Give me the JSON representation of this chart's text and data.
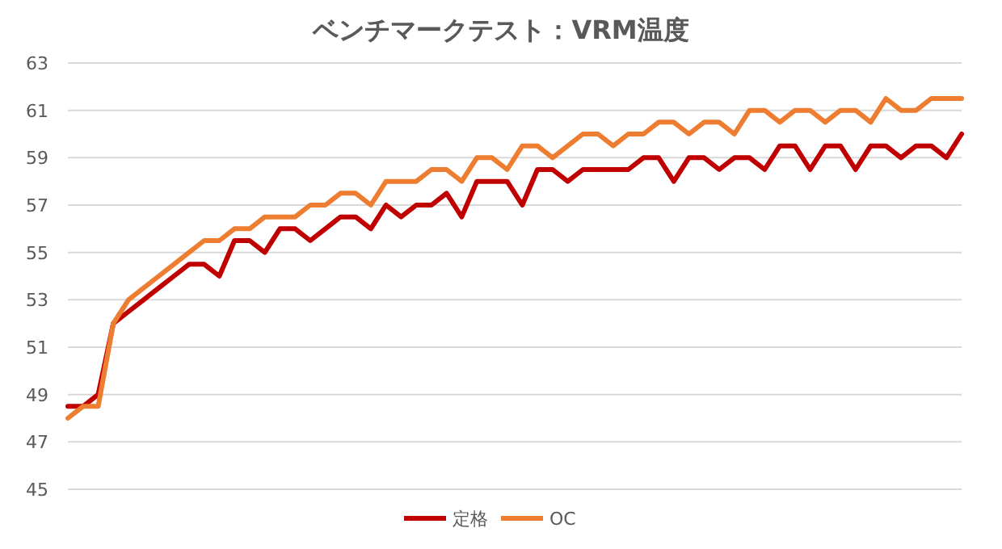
{
  "chart_data": {
    "type": "line",
    "title": "ベンチマークテスト：VRM温度",
    "categories": [
      null,
      null,
      null,
      null,
      null,
      null,
      null,
      null,
      null,
      null,
      null,
      null,
      null,
      null,
      null,
      null,
      null,
      null,
      null,
      null,
      null,
      null,
      null,
      null,
      null,
      null,
      null,
      null,
      null,
      null,
      null,
      null,
      null,
      null,
      null,
      null,
      null,
      null,
      null,
      null,
      null,
      null,
      null,
      null,
      null,
      null,
      null,
      null,
      null,
      null,
      null,
      null,
      null,
      null,
      null,
      null,
      null,
      null,
      null,
      null
    ],
    "series": [
      {
        "name": "定格",
        "color": "#c00000",
        "values": [
          48.5,
          48.5,
          49,
          52,
          52.5,
          53,
          53.5,
          54,
          54.5,
          54.5,
          54,
          55.5,
          55.5,
          55,
          56,
          56,
          55.5,
          56,
          56.5,
          56.5,
          56,
          57,
          56.5,
          57,
          57,
          57.5,
          56.5,
          58,
          58,
          58,
          57,
          58.5,
          58.5,
          58,
          58.5,
          58.5,
          58.5,
          58.5,
          59,
          59,
          58,
          59,
          59,
          58.5,
          59,
          59,
          58.5,
          59.5,
          59.5,
          58.5,
          59.5,
          59.5,
          58.5,
          59.5,
          59.5,
          59,
          59.5,
          59.5,
          59,
          60
        ]
      },
      {
        "name": "OC",
        "color": "#ed7d31",
        "values": [
          48,
          48.5,
          48.5,
          52,
          53,
          53.5,
          54,
          54.5,
          55,
          55.5,
          55.5,
          56,
          56,
          56.5,
          56.5,
          56.5,
          57,
          57,
          57.5,
          57.5,
          57,
          58,
          58,
          58,
          58.5,
          58.5,
          58,
          59,
          59,
          58.5,
          59.5,
          59.5,
          59,
          59.5,
          60,
          60,
          59.5,
          60,
          60,
          60.5,
          60.5,
          60,
          60.5,
          60.5,
          60,
          61,
          61,
          60.5,
          61,
          61,
          60.5,
          61,
          61,
          60.5,
          61.5,
          61,
          61,
          61.5,
          61.5,
          61.5
        ]
      }
    ],
    "ylim": [
      45,
      63
    ],
    "yticks": [
      45,
      47,
      49,
      51,
      53,
      55,
      57,
      59,
      61,
      63
    ],
    "grid": "y",
    "legend": "bottom",
    "marker": "none",
    "line_style": "solid"
  }
}
